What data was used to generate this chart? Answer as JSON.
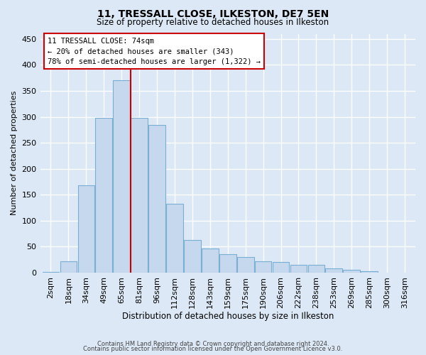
{
  "title1": "11, TRESSALL CLOSE, ILKESTON, DE7 5EN",
  "title2": "Size of property relative to detached houses in Ilkeston",
  "xlabel": "Distribution of detached houses by size in Ilkeston",
  "ylabel": "Number of detached properties",
  "categories": [
    "2sqm",
    "18sqm",
    "34sqm",
    "49sqm",
    "65sqm",
    "81sqm",
    "96sqm",
    "112sqm",
    "128sqm",
    "143sqm",
    "159sqm",
    "175sqm",
    "190sqm",
    "206sqm",
    "222sqm",
    "238sqm",
    "253sqm",
    "269sqm",
    "285sqm",
    "300sqm",
    "316sqm"
  ],
  "values": [
    1,
    22,
    168,
    298,
    370,
    298,
    285,
    133,
    63,
    47,
    35,
    30,
    22,
    20,
    15,
    15,
    8,
    5,
    3,
    0,
    0
  ],
  "bar_color": "#c5d8ee",
  "bar_edge_color": "#7aafd4",
  "vline_color": "#cc0000",
  "annotation_lines": [
    "11 TRESSALL CLOSE: 74sqm",
    "← 20% of detached houses are smaller (343)",
    "78% of semi-detached houses are larger (1,322) →"
  ],
  "ylim": [
    0,
    460
  ],
  "yticks": [
    0,
    50,
    100,
    150,
    200,
    250,
    300,
    350,
    400,
    450
  ],
  "footer1": "Contains HM Land Registry data © Crown copyright and database right 2024.",
  "footer2": "Contains public sector information licensed under the Open Government Licence v3.0.",
  "bg_color": "#dce8f5"
}
